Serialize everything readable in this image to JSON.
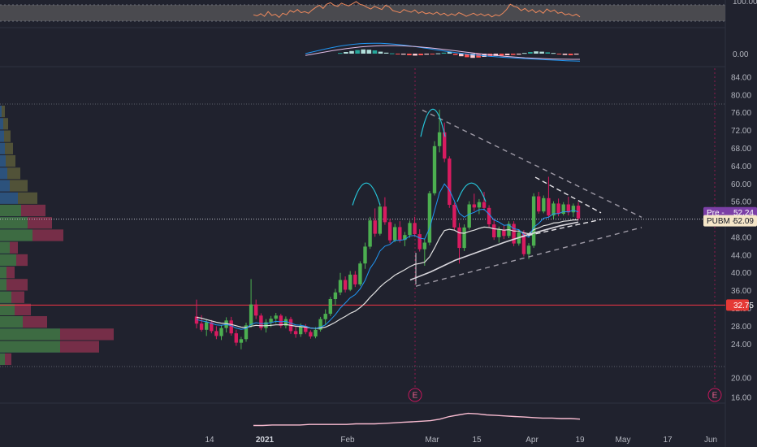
{
  "colors": {
    "background": "#20222e",
    "up": "#4caf50",
    "down": "#d81b60",
    "ema_fast": "#2196f3",
    "ema_slow": "#e0e0e0",
    "support_line": "#f23645",
    "pre_badge": "#7b3fa6",
    "last_badge": "#f5e6c8",
    "rsi": "#f08a5d",
    "volume_line": "#f8bbd0"
  },
  "chart_data": [
    {
      "type": "line",
      "panel": "rsi",
      "y_ticks": [
        "100.00"
      ],
      "x": [
        1,
        2,
        3,
        4,
        5,
        6,
        7,
        8,
        9,
        10,
        11,
        12,
        13,
        14,
        15,
        16,
        17,
        18,
        19,
        20,
        21,
        22,
        23,
        24,
        25,
        26,
        27,
        28,
        29,
        30,
        31,
        32,
        33,
        34,
        35,
        36,
        37,
        38,
        39,
        40,
        41,
        42,
        43,
        44,
        45,
        46,
        47,
        48,
        49,
        50,
        51,
        52,
        53,
        54,
        55,
        56,
        57,
        58,
        59,
        60,
        61,
        62,
        63,
        64,
        65,
        66,
        67,
        68,
        69,
        70,
        71,
        72,
        73,
        74,
        75,
        76,
        77,
        78,
        79,
        80,
        81,
        82,
        83,
        84,
        85,
        86,
        87,
        88,
        89,
        90
      ],
      "values": [
        52,
        50,
        54,
        49,
        58,
        51,
        53,
        47,
        55,
        52,
        60,
        57,
        62,
        56,
        58,
        55,
        61,
        66,
        70,
        64,
        72,
        75,
        70,
        68,
        74,
        71,
        69,
        73,
        78,
        72,
        70,
        66,
        63,
        68,
        65,
        62,
        70,
        67,
        60,
        58,
        56,
        62,
        59,
        57,
        61,
        55,
        58,
        54,
        56,
        53,
        57,
        52,
        55,
        50,
        54,
        51,
        56,
        53,
        49,
        52,
        55,
        51,
        54,
        50,
        53,
        48,
        52,
        50,
        55,
        62,
        72,
        68,
        66,
        60,
        64,
        58,
        62,
        56,
        60,
        55,
        63,
        58,
        61,
        55,
        57,
        52,
        54,
        50,
        53,
        48
      ]
    },
    {
      "type": "bar",
      "panel": "macd",
      "y_ticks": [
        "0.00"
      ],
      "histogram": [
        0.2,
        0.5,
        0.8,
        1.1,
        1.3,
        1.2,
        1.0,
        0.6,
        0.3,
        0.1,
        -0.1,
        -0.3,
        -0.5,
        -0.6,
        -0.5,
        -0.3,
        -0.1,
        0.1,
        0.3,
        0.5,
        -0.4,
        -0.8,
        -1.1,
        -1.3,
        -1.2,
        -1.0,
        -0.9,
        -0.7,
        -0.6,
        -0.5,
        -0.4,
        -0.3,
        0.2,
        0.5,
        0.7,
        0.6,
        0.4,
        0.2,
        -0.2,
        -0.4,
        -0.5,
        -0.3
      ]
    },
    {
      "type": "candlestick",
      "panel": "price",
      "y_ticks": [
        "84.00",
        "80.00",
        "76.00",
        "72.00",
        "68.00",
        "64.00",
        "60.00",
        "56.00",
        "52.00",
        "48.00",
        "44.00",
        "40.00",
        "36.00",
        "32.00",
        "28.00",
        "24.00",
        "20.00",
        "16.00"
      ],
      "x_ticks": [
        "14",
        "2021",
        "Feb",
        "Mar",
        "15",
        "Apr",
        "19",
        "May",
        "17",
        "Jun"
      ],
      "ylim": [
        14,
        86
      ],
      "ohlc": [
        [
          30.2,
          34.0,
          27.5,
          28.6
        ],
        [
          28.6,
          30.5,
          26.8,
          27.2
        ],
        [
          27.2,
          29.6,
          25.8,
          28.9
        ],
        [
          28.9,
          29.4,
          26.4,
          26.9
        ],
        [
          26.9,
          28.0,
          25.1,
          25.8
        ],
        [
          25.8,
          28.2,
          24.9,
          27.6
        ],
        [
          27.6,
          30.0,
          26.6,
          29.3
        ],
        [
          29.3,
          30.1,
          25.9,
          26.4
        ],
        [
          26.4,
          27.2,
          23.6,
          24.3
        ],
        [
          24.3,
          25.6,
          22.8,
          25.1
        ],
        [
          25.1,
          28.8,
          24.5,
          28.2
        ],
        [
          28.2,
          38.6,
          27.7,
          32.9
        ],
        [
          32.9,
          34.0,
          29.6,
          30.4
        ],
        [
          30.4,
          30.9,
          27.1,
          27.6
        ],
        [
          27.6,
          29.6,
          26.6,
          28.9
        ],
        [
          28.9,
          30.3,
          27.8,
          29.7
        ],
        [
          29.7,
          31.0,
          28.6,
          30.4
        ],
        [
          30.4,
          30.8,
          27.6,
          28.1
        ],
        [
          28.1,
          30.2,
          27.5,
          29.6
        ],
        [
          29.6,
          30.1,
          26.3,
          26.9
        ],
        [
          26.9,
          27.9,
          25.4,
          26.2
        ],
        [
          26.2,
          28.6,
          25.6,
          28.0
        ],
        [
          28.0,
          28.5,
          26.2,
          26.7
        ],
        [
          26.7,
          27.1,
          25.2,
          25.7
        ],
        [
          25.7,
          27.8,
          25.3,
          27.2
        ],
        [
          27.2,
          30.1,
          26.8,
          29.6
        ],
        [
          29.6,
          31.8,
          28.3,
          30.8
        ],
        [
          30.8,
          34.6,
          30.3,
          34.1
        ],
        [
          34.1,
          36.4,
          32.7,
          35.6
        ],
        [
          35.6,
          40.0,
          35.0,
          38.4
        ],
        [
          38.4,
          39.2,
          35.6,
          36.2
        ],
        [
          36.2,
          40.4,
          35.9,
          39.6
        ],
        [
          39.6,
          40.4,
          36.8,
          37.4
        ],
        [
          37.4,
          42.6,
          37.0,
          42.1
        ],
        [
          42.1,
          46.8,
          40.9,
          45.9
        ],
        [
          45.9,
          52.6,
          45.4,
          51.8
        ],
        [
          51.8,
          54.5,
          48.1,
          48.8
        ],
        [
          48.8,
          55.6,
          48.4,
          54.9
        ],
        [
          54.9,
          57.0,
          50.8,
          51.4
        ],
        [
          51.4,
          52.2,
          46.7,
          47.3
        ],
        [
          47.3,
          51.0,
          46.9,
          50.3
        ],
        [
          50.3,
          51.6,
          46.8,
          47.4
        ],
        [
          47.4,
          49.2,
          46.0,
          48.5
        ],
        [
          48.5,
          51.8,
          47.9,
          51.2
        ],
        [
          51.2,
          52.6,
          48.1,
          48.7
        ],
        [
          48.7,
          49.8,
          44.8,
          45.3
        ],
        [
          45.3,
          47.6,
          41.6,
          46.8
        ],
        [
          46.8,
          58.4,
          46.2,
          57.9
        ],
        [
          57.9,
          69.6,
          57.4,
          68.5
        ],
        [
          68.5,
          76.7,
          67.1,
          71.6
        ],
        [
          71.6,
          73.8,
          64.9,
          65.7
        ],
        [
          65.7,
          66.2,
          54.6,
          55.3
        ],
        [
          55.3,
          55.8,
          49.6,
          50.2
        ],
        [
          50.2,
          51.2,
          42.1,
          45.6
        ],
        [
          45.6,
          50.9,
          44.9,
          50.2
        ],
        [
          50.2,
          56.1,
          49.7,
          55.4
        ],
        [
          55.4,
          57.8,
          53.9,
          54.7
        ],
        [
          54.7,
          56.6,
          53.2,
          55.9
        ],
        [
          55.9,
          58.2,
          54.0,
          54.6
        ],
        [
          54.6,
          55.2,
          50.3,
          50.9
        ],
        [
          50.9,
          52.2,
          47.4,
          48.0
        ],
        [
          48.0,
          50.4,
          46.8,
          49.7
        ],
        [
          49.7,
          50.6,
          47.6,
          48.3
        ],
        [
          48.3,
          51.6,
          47.8,
          51.0
        ],
        [
          51.0,
          51.6,
          46.0,
          46.6
        ],
        [
          46.6,
          49.8,
          46.1,
          49.1
        ],
        [
          49.1,
          49.6,
          43.7,
          44.2
        ],
        [
          44.2,
          46.7,
          43.1,
          46.1
        ],
        [
          46.1,
          57.9,
          45.6,
          57.2
        ],
        [
          57.2,
          58.2,
          53.3,
          53.8
        ],
        [
          53.8,
          57.4,
          53.4,
          56.8
        ],
        [
          56.8,
          61.6,
          52.4,
          52.9
        ],
        [
          52.9,
          56.1,
          52.1,
          55.6
        ],
        [
          55.6,
          56.7,
          52.7,
          53.3
        ],
        [
          53.3,
          55.9,
          52.9,
          55.4
        ],
        [
          55.4,
          57.1,
          52.9,
          53.6
        ],
        [
          53.6,
          55.6,
          52.6,
          55.1
        ],
        [
          55.1,
          55.9,
          51.8,
          52.24
        ]
      ],
      "ema_fast": [
        29.5,
        29.2,
        29.0,
        28.7,
        28.3,
        28.2,
        28.4,
        28.1,
        27.6,
        27.3,
        27.5,
        28.4,
        28.8,
        28.6,
        28.6,
        28.8,
        29.1,
        29.0,
        29.1,
        28.7,
        28.3,
        28.2,
        28.0,
        27.6,
        27.5,
        27.8,
        28.3,
        29.4,
        30.6,
        32.1,
        33.2,
        34.4,
        35.1,
        36.4,
        38.3,
        41.0,
        42.6,
        44.9,
        46.0,
        46.4,
        47.3,
        47.3,
        47.5,
        48.3,
        48.4,
        47.8,
        47.6,
        50.0,
        54.0,
        58.0,
        60.0,
        58.6,
        56.2,
        53.4,
        52.5,
        53.2,
        53.6,
        54.2,
        54.3,
        53.2,
        51.9,
        51.4,
        50.7,
        50.8,
        49.9,
        49.7,
        48.6,
        48.0,
        50.3,
        51.1,
        52.3,
        52.5,
        53.3,
        53.3,
        53.8,
        53.7,
        54.1,
        53.7
      ],
      "ema_slow": [
        30.0,
        29.8,
        29.5,
        29.2,
        28.9,
        28.7,
        28.6,
        28.4,
        28.1,
        27.8,
        27.7,
        28.0,
        28.2,
        28.1,
        28.1,
        28.2,
        28.3,
        28.3,
        28.4,
        28.2,
        28.0,
        27.9,
        27.8,
        27.6,
        27.5,
        27.6,
        27.8,
        28.3,
        28.9,
        29.6,
        30.2,
        30.9,
        31.4,
        32.2,
        33.2,
        34.5,
        35.6,
        36.8,
        37.8,
        38.6,
        39.5,
        40.1,
        40.7,
        41.4,
        41.9,
        42.1,
        42.4,
        43.6,
        45.6,
        47.8,
        49.5,
        49.8,
        49.6,
        49.0,
        48.9,
        49.3,
        49.6,
        50.0,
        50.3,
        50.2,
        49.9,
        49.8,
        49.6,
        49.7,
        49.4,
        49.4,
        49.0,
        48.8,
        49.7,
        50.1,
        50.6,
        50.8,
        51.2,
        51.3,
        51.6,
        51.7,
        51.9,
        51.9
      ],
      "support_price": 32.75,
      "pre_label": "Pre",
      "pre_price": "52.24",
      "last_label": "PUBM",
      "last_price": "52.09",
      "support_label": "32.75",
      "earnings_markers": [
        "E",
        "E"
      ]
    },
    {
      "type": "area",
      "panel": "volume_ma",
      "values": [
        10,
        10,
        11,
        11,
        11,
        11,
        12,
        12,
        12,
        12,
        12,
        13,
        13,
        13,
        14,
        15,
        16,
        17,
        18,
        19,
        22,
        27,
        30,
        33,
        32,
        30,
        29,
        28,
        27,
        26,
        25,
        24,
        24,
        23,
        23,
        22
      ]
    },
    {
      "type": "bar",
      "panel": "volume_profile",
      "orientation": "horizontal",
      "rows": [
        {
          "up": 2,
          "down": 4
        },
        {
          "up": 4,
          "down": 6
        },
        {
          "up": 5,
          "down": 8
        },
        {
          "up": 6,
          "down": 10
        },
        {
          "up": 7,
          "down": 12
        },
        {
          "up": 9,
          "down": 16
        },
        {
          "up": 12,
          "down": 22
        },
        {
          "up": 22,
          "down": 24
        },
        {
          "up": 26,
          "down": 30
        },
        {
          "up": 34,
          "down": 30
        },
        {
          "up": 40,
          "down": 38
        },
        {
          "up": 12,
          "down": 10
        },
        {
          "up": 20,
          "down": 14
        },
        {
          "up": 8,
          "down": 10
        },
        {
          "up": 8,
          "down": 26
        },
        {
          "up": 14,
          "down": 16
        },
        {
          "up": 18,
          "down": 20
        },
        {
          "up": 28,
          "down": 30
        },
        {
          "up": 74,
          "down": 66
        },
        {
          "up": 74,
          "down": 48
        },
        {
          "up": 6,
          "down": 8
        }
      ]
    }
  ]
}
